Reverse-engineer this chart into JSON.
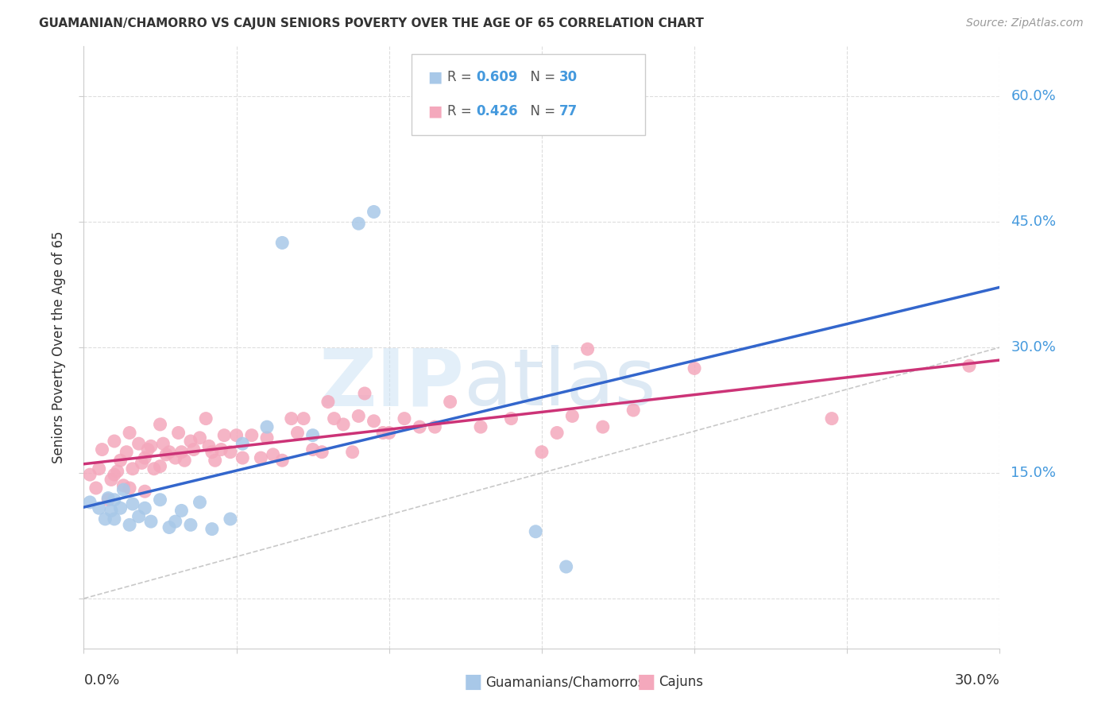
{
  "title": "GUAMANIAN/CHAMORRO VS CAJUN SENIORS POVERTY OVER THE AGE OF 65 CORRELATION CHART",
  "source": "Source: ZipAtlas.com",
  "ylabel": "Seniors Poverty Over the Age of 65",
  "right_ytick_vals": [
    0.6,
    0.45,
    0.3,
    0.15
  ],
  "right_ytick_labels": [
    "60.0%",
    "45.0%",
    "30.0%",
    "15.0%"
  ],
  "blue_dot_color": "#a8c8e8",
  "pink_dot_color": "#f4a8bc",
  "blue_line_color": "#3366cc",
  "pink_line_color": "#cc3377",
  "ref_line_color": "#bbbbbb",
  "grid_color": "#dddddd",
  "text_color": "#333333",
  "source_color": "#999999",
  "axis_label_color": "#4499dd",
  "xmin": 0.0,
  "xmax": 0.3,
  "ymin": -0.06,
  "ymax": 0.66,
  "bottom_label1": "Guamanians/Chamorros",
  "bottom_label2": "Cajuns",
  "guamanian_x": [
    0.002,
    0.005,
    0.007,
    0.008,
    0.009,
    0.01,
    0.01,
    0.012,
    0.013,
    0.015,
    0.016,
    0.018,
    0.02,
    0.022,
    0.025,
    0.028,
    0.03,
    0.032,
    0.035,
    0.038,
    0.042,
    0.048,
    0.052,
    0.06,
    0.065,
    0.075,
    0.09,
    0.095,
    0.148,
    0.158
  ],
  "guamanian_y": [
    0.115,
    0.108,
    0.095,
    0.12,
    0.105,
    0.118,
    0.095,
    0.108,
    0.13,
    0.088,
    0.113,
    0.098,
    0.108,
    0.092,
    0.118,
    0.085,
    0.092,
    0.105,
    0.088,
    0.115,
    0.083,
    0.095,
    0.185,
    0.205,
    0.425,
    0.195,
    0.448,
    0.462,
    0.08,
    0.038
  ],
  "cajun_x": [
    0.002,
    0.004,
    0.005,
    0.006,
    0.008,
    0.009,
    0.01,
    0.01,
    0.011,
    0.012,
    0.013,
    0.014,
    0.015,
    0.015,
    0.016,
    0.018,
    0.019,
    0.02,
    0.02,
    0.021,
    0.022,
    0.023,
    0.025,
    0.025,
    0.026,
    0.027,
    0.028,
    0.03,
    0.031,
    0.032,
    0.033,
    0.035,
    0.036,
    0.038,
    0.04,
    0.041,
    0.042,
    0.043,
    0.045,
    0.046,
    0.048,
    0.05,
    0.052,
    0.055,
    0.058,
    0.06,
    0.062,
    0.065,
    0.068,
    0.07,
    0.072,
    0.075,
    0.078,
    0.08,
    0.082,
    0.085,
    0.088,
    0.09,
    0.092,
    0.095,
    0.098,
    0.1,
    0.105,
    0.11,
    0.115,
    0.12,
    0.13,
    0.14,
    0.15,
    0.155,
    0.16,
    0.165,
    0.17,
    0.18,
    0.2,
    0.245,
    0.29
  ],
  "cajun_y": [
    0.148,
    0.132,
    0.155,
    0.178,
    0.118,
    0.142,
    0.188,
    0.148,
    0.152,
    0.165,
    0.135,
    0.175,
    0.132,
    0.198,
    0.155,
    0.185,
    0.162,
    0.168,
    0.128,
    0.178,
    0.182,
    0.155,
    0.158,
    0.208,
    0.185,
    0.172,
    0.175,
    0.168,
    0.198,
    0.175,
    0.165,
    0.188,
    0.178,
    0.192,
    0.215,
    0.182,
    0.175,
    0.165,
    0.178,
    0.195,
    0.175,
    0.195,
    0.168,
    0.195,
    0.168,
    0.192,
    0.172,
    0.165,
    0.215,
    0.198,
    0.215,
    0.178,
    0.175,
    0.235,
    0.215,
    0.208,
    0.175,
    0.218,
    0.245,
    0.212,
    0.198,
    0.198,
    0.215,
    0.205,
    0.205,
    0.235,
    0.205,
    0.215,
    0.175,
    0.198,
    0.218,
    0.298,
    0.205,
    0.225,
    0.275,
    0.215,
    0.278
  ]
}
